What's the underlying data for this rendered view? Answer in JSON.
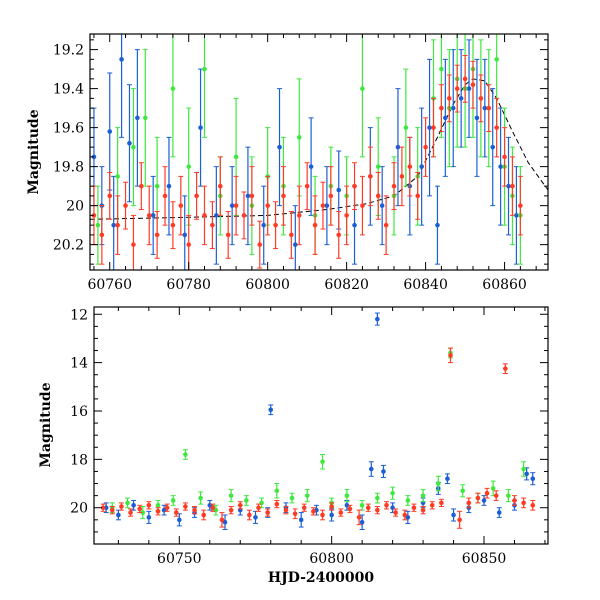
{
  "colors": {
    "blue": "#1a5fd6",
    "green": "#3ee83e",
    "red": "#ff3b24",
    "model": "#000000"
  },
  "chart_data": [
    {
      "type": "scatter",
      "xlabel": "",
      "ylabel": "Magnitude",
      "xlim": [
        60755,
        60871
      ],
      "ylim": [
        20.33,
        19.12
      ],
      "inverted_y": true,
      "xticks": [
        60760,
        60780,
        60800,
        60820,
        60840,
        60860
      ],
      "xtick_labels": [
        "60760",
        "60780",
        "60800",
        "60820",
        "60840",
        "60860"
      ],
      "yticks": [
        19.2,
        19.4,
        19.6,
        19.8,
        20,
        20.2
      ],
      "ytick_labels": [
        "19.2",
        "19.4",
        "19.6",
        "19.8",
        "20",
        "20.2"
      ],
      "model_curve": {
        "x": [
          60755,
          60780,
          60800,
          60815,
          60825,
          60832,
          60838,
          60843,
          60847,
          60850,
          60852,
          60855,
          60858,
          60862,
          60866,
          60871
        ],
        "y": [
          20.07,
          20.06,
          20.05,
          20.02,
          19.99,
          19.95,
          19.85,
          19.65,
          19.48,
          19.38,
          19.35,
          19.36,
          19.45,
          19.62,
          19.78,
          19.92
        ]
      },
      "series": [
        {
          "color": "blue",
          "x": [
            60756,
            60758,
            60760,
            60761,
            60763,
            60765,
            60767,
            60771,
            60775,
            60779,
            60783,
            60787,
            60791,
            60795,
            60799,
            60803,
            60807,
            60811,
            60815,
            60818,
            60822,
            60826,
            60829,
            60833,
            60836,
            60839,
            60841,
            60843,
            60845,
            60847,
            60849,
            60851,
            60853,
            60855,
            60857,
            60859,
            60861,
            60863
          ],
          "y": [
            19.75,
            20.0,
            19.62,
            20.1,
            19.25,
            19.68,
            19.55,
            20.05,
            19.9,
            20.15,
            19.6,
            20.05,
            20.0,
            19.95,
            20.1,
            19.7,
            20.2,
            19.8,
            20.0,
            19.92,
            20.1,
            19.85,
            20.0,
            19.7,
            19.9,
            19.8,
            19.6,
            20.1,
            19.55,
            19.5,
            19.45,
            19.4,
            19.55,
            19.5,
            19.7,
            19.8,
            19.9,
            20.05
          ],
          "err": [
            0.25,
            0.2,
            0.3,
            0.25,
            0.4,
            0.3,
            0.35,
            0.2,
            0.25,
            0.2,
            0.3,
            0.25,
            0.2,
            0.25,
            0.2,
            0.3,
            0.2,
            0.25,
            0.2,
            0.2,
            0.2,
            0.25,
            0.2,
            0.3,
            0.25,
            0.3,
            0.35,
            0.2,
            0.3,
            0.3,
            0.25,
            0.25,
            0.3,
            0.25,
            0.3,
            0.3,
            0.25,
            0.25
          ]
        },
        {
          "color": "green",
          "x": [
            60757,
            60762,
            60766,
            60769,
            60772,
            60776,
            60780,
            60784,
            60788,
            60792,
            60796,
            60800,
            60804,
            60808,
            60812,
            60816,
            60820,
            60824,
            60828,
            60832,
            60835,
            60838,
            60842,
            60844,
            60846,
            60848,
            60850,
            60852,
            60854,
            60856,
            60858,
            60860,
            60862,
            60864
          ],
          "y": [
            20.1,
            19.85,
            19.7,
            19.55,
            19.9,
            19.4,
            19.8,
            19.3,
            19.95,
            19.75,
            20.0,
            19.85,
            19.9,
            19.65,
            20.05,
            19.9,
            19.95,
            19.4,
            19.8,
            19.95,
            19.6,
            19.85,
            19.45,
            19.3,
            19.5,
            19.35,
            19.4,
            19.3,
            19.45,
            19.5,
            19.25,
            19.8,
            19.95,
            20.05
          ],
          "err": [
            0.2,
            0.25,
            0.3,
            0.35,
            0.25,
            0.35,
            0.3,
            0.35,
            0.2,
            0.3,
            0.25,
            0.25,
            0.25,
            0.3,
            0.2,
            0.2,
            0.2,
            0.35,
            0.25,
            0.2,
            0.3,
            0.25,
            0.3,
            0.35,
            0.3,
            0.35,
            0.3,
            0.35,
            0.3,
            0.3,
            0.35,
            0.3,
            0.25,
            0.25
          ]
        },
        {
          "color": "red",
          "x": [
            60756,
            60758,
            60760,
            60762,
            60764,
            60766,
            60768,
            60770,
            60772,
            60774,
            60776,
            60778,
            60780,
            60782,
            60784,
            60786,
            60788,
            60790,
            60792,
            60794,
            60796,
            60798,
            60800,
            60802,
            60804,
            60806,
            60808,
            60810,
            60812,
            60814,
            60816,
            60818,
            60820,
            60822,
            60824,
            60826,
            60828,
            60830,
            60832,
            60834,
            60836,
            60838,
            60840,
            60842,
            60844,
            60846,
            60848,
            60850,
            60852,
            60854,
            60856,
            60858,
            60860,
            60862,
            60864
          ],
          "y": [
            20.05,
            20.15,
            19.95,
            20.1,
            20.0,
            20.2,
            19.9,
            20.05,
            20.15,
            19.95,
            20.1,
            20.0,
            20.2,
            19.95,
            20.05,
            20.1,
            19.9,
            20.15,
            20.0,
            20.05,
            19.95,
            20.2,
            20.0,
            20.1,
            19.95,
            20.15,
            20.05,
            19.9,
            20.1,
            20.0,
            19.95,
            20.15,
            20.05,
            19.9,
            20.0,
            19.85,
            19.95,
            20.1,
            19.9,
            19.85,
            19.8,
            19.95,
            19.7,
            19.6,
            19.5,
            19.45,
            19.4,
            19.35,
            19.38,
            19.45,
            19.5,
            19.6,
            19.75,
            19.9,
            20.0
          ],
          "err": [
            0.15,
            0.15,
            0.12,
            0.15,
            0.12,
            0.15,
            0.12,
            0.15,
            0.12,
            0.15,
            0.12,
            0.15,
            0.15,
            0.12,
            0.15,
            0.12,
            0.15,
            0.12,
            0.15,
            0.12,
            0.15,
            0.12,
            0.15,
            0.12,
            0.15,
            0.12,
            0.15,
            0.12,
            0.15,
            0.12,
            0.15,
            0.12,
            0.15,
            0.12,
            0.15,
            0.15,
            0.12,
            0.15,
            0.12,
            0.15,
            0.15,
            0.12,
            0.15,
            0.15,
            0.12,
            0.12,
            0.12,
            0.12,
            0.12,
            0.12,
            0.12,
            0.15,
            0.15,
            0.15,
            0.15
          ]
        }
      ]
    },
    {
      "type": "scatter",
      "xlabel": "HJD-2400000",
      "ylabel": "Magnitude",
      "xlim": [
        60722,
        60871
      ],
      "ylim": [
        21.5,
        11.7
      ],
      "inverted_y": true,
      "xticks": [
        60750,
        60800,
        60850
      ],
      "xtick_labels": [
        "60750",
        "60800",
        "60850"
      ],
      "yticks": [
        12,
        14,
        16,
        18,
        20
      ],
      "ytick_labels": [
        "12",
        "14",
        "16",
        "18",
        "20"
      ],
      "series": [
        {
          "color": "blue",
          "x": [
            60726,
            60730,
            60735,
            60740,
            60745,
            60750,
            60755,
            60760,
            60765,
            60770,
            60775,
            60779,
            60780,
            60785,
            60790,
            60795,
            60800,
            60805,
            60810,
            60813,
            60815,
            60817,
            60820,
            60825,
            60830,
            60835,
            60838,
            60840,
            60845,
            60850,
            60855,
            60860,
            60864,
            60866
          ],
          "y": [
            20.0,
            20.3,
            19.9,
            20.4,
            20.1,
            20.5,
            20.2,
            19.9,
            20.6,
            20.1,
            20.4,
            20.2,
            15.95,
            20.0,
            20.5,
            20.1,
            20.3,
            19.9,
            20.6,
            18.4,
            12.2,
            18.5,
            20.0,
            20.4,
            19.8,
            19.2,
            18.8,
            20.3,
            20.0,
            19.7,
            20.2,
            19.9,
            18.6,
            18.8
          ],
          "err": [
            0.2,
            0.2,
            0.2,
            0.25,
            0.2,
            0.25,
            0.2,
            0.2,
            0.3,
            0.2,
            0.25,
            0.2,
            0.2,
            0.2,
            0.3,
            0.2,
            0.25,
            0.2,
            0.3,
            0.3,
            0.25,
            0.25,
            0.2,
            0.25,
            0.2,
            0.25,
            0.2,
            0.25,
            0.2,
            0.2,
            0.2,
            0.2,
            0.25,
            0.25
          ]
        },
        {
          "color": "green",
          "x": [
            60728,
            60733,
            60738,
            60743,
            60748,
            60752,
            60757,
            60762,
            60767,
            60772,
            60777,
            60782,
            60787,
            60792,
            60797,
            60800,
            60805,
            60810,
            60815,
            60820,
            60825,
            60830,
            60835,
            60839,
            60843,
            60848,
            60853,
            60858,
            60863
          ],
          "y": [
            20.0,
            19.8,
            20.2,
            19.9,
            19.7,
            17.8,
            19.6,
            20.1,
            19.5,
            19.7,
            19.8,
            19.3,
            19.6,
            19.5,
            18.1,
            19.8,
            19.5,
            19.9,
            19.6,
            19.4,
            19.7,
            19.5,
            19.0,
            13.6,
            19.3,
            19.6,
            19.2,
            19.5,
            18.4
          ],
          "err": [
            0.2,
            0.2,
            0.25,
            0.2,
            0.2,
            0.2,
            0.25,
            0.2,
            0.25,
            0.2,
            0.2,
            0.3,
            0.2,
            0.25,
            0.3,
            0.2,
            0.25,
            0.2,
            0.2,
            0.25,
            0.2,
            0.25,
            0.3,
            0.2,
            0.25,
            0.2,
            0.3,
            0.25,
            0.3
          ]
        },
        {
          "color": "red",
          "x": [
            60725,
            60728,
            60731,
            60734,
            60737,
            60740,
            60743,
            60746,
            60749,
            60752,
            60755,
            60758,
            60761,
            60764,
            60767,
            60770,
            60773,
            60776,
            60779,
            60782,
            60785,
            60788,
            60791,
            60794,
            60797,
            60800,
            60803,
            60806,
            60809,
            60812,
            60815,
            60818,
            60821,
            60824,
            60827,
            60830,
            60833,
            60836,
            60839,
            60842,
            60845,
            60848,
            60851,
            60854,
            60857,
            60860,
            60863,
            60866
          ],
          "y": [
            20.0,
            20.1,
            19.95,
            20.2,
            20.05,
            19.9,
            20.15,
            20.0,
            20.2,
            19.95,
            20.1,
            20.3,
            20.0,
            20.5,
            20.1,
            19.9,
            20.3,
            20.0,
            20.2,
            19.85,
            20.1,
            20.25,
            20.0,
            20.15,
            20.3,
            19.95,
            20.2,
            20.05,
            20.4,
            20.0,
            20.1,
            19.9,
            20.2,
            20.3,
            20.0,
            20.1,
            19.9,
            19.8,
            13.7,
            20.5,
            19.8,
            19.6,
            19.4,
            19.5,
            14.25,
            19.7,
            19.8,
            19.9
          ],
          "err": [
            0.15,
            0.15,
            0.15,
            0.15,
            0.15,
            0.15,
            0.15,
            0.15,
            0.15,
            0.15,
            0.15,
            0.2,
            0.15,
            0.3,
            0.15,
            0.15,
            0.2,
            0.15,
            0.15,
            0.15,
            0.15,
            0.2,
            0.15,
            0.15,
            0.2,
            0.15,
            0.15,
            0.15,
            0.3,
            0.15,
            0.15,
            0.15,
            0.15,
            0.2,
            0.15,
            0.15,
            0.15,
            0.15,
            0.3,
            0.35,
            0.2,
            0.2,
            0.2,
            0.2,
            0.2,
            0.2,
            0.2,
            0.2
          ]
        }
      ]
    }
  ]
}
